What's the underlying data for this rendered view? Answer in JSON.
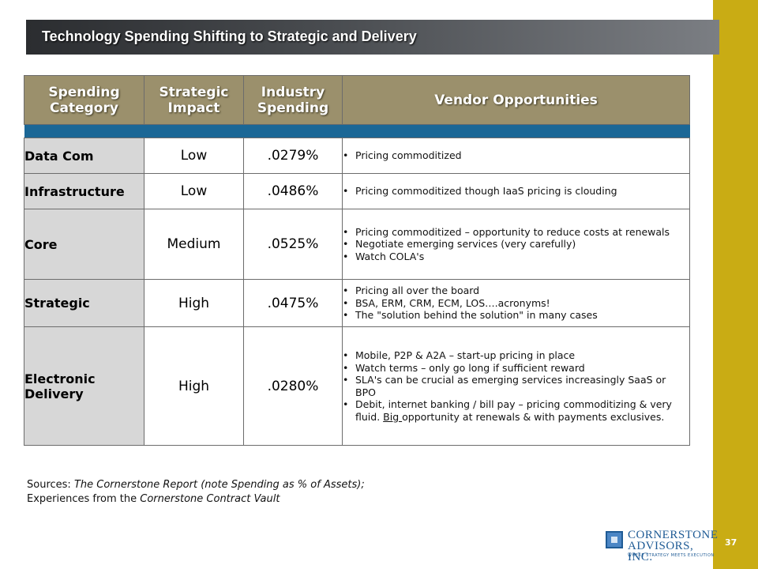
{
  "slide": {
    "title": "Technology Spending Shifting to Strategic and Delivery",
    "page_number": "37"
  },
  "table": {
    "headers": {
      "category_line1": "Spending",
      "category_line2": "Category",
      "impact_line1": "Strategic",
      "impact_line2": "Impact",
      "spending_line1": "Industry",
      "spending_line2": "Spending",
      "vendor": "Vendor Opportunities"
    },
    "rows": [
      {
        "category": "Data Com",
        "impact": "Low",
        "spending": ".0279%",
        "bullets": [
          "Pricing commoditized"
        ]
      },
      {
        "category": "Infrastructure",
        "impact": "Low",
        "spending": ".0486%",
        "bullets": [
          "Pricing commoditized though IaaS pricing is clouding"
        ]
      },
      {
        "category": "Core",
        "impact": "Medium",
        "spending": ".0525%",
        "bullets": [
          "Pricing commoditized – opportunity to reduce costs at renewals",
          "Negotiate emerging services (very carefully)",
          "Watch COLA's"
        ]
      },
      {
        "category": "Strategic",
        "impact": "High",
        "spending": ".0475%",
        "bullets": [
          "Pricing all over the board",
          "BSA, ERM, CRM, ECM, LOS….acronyms!",
          "The \"solution behind the solution\" in many cases"
        ]
      },
      {
        "category": "Electronic Delivery",
        "impact": "High",
        "spending": ".0280%",
        "bullets": [
          "Mobile, P2P & A2A – start-up pricing in place",
          "Watch terms – only go long if sufficient reward",
          "SLA's can be crucial as emerging services increasingly SaaS or BPO"
        ],
        "last_bullet": {
          "before": "Debit, internet banking / bill pay – pricing commoditizing & very fluid.  ",
          "underlined": "Big ",
          "after": "opportunity at renewals & with payments exclusives."
        }
      }
    ]
  },
  "sources": {
    "line1_label": "Sources: ",
    "line1_italic": "The Cornerstone Report (note Spending as % of Assets);",
    "line2_label": "Experiences from the ",
    "line2_italic": "Cornerstone Contract Vault"
  },
  "logo": {
    "line1": "CORNERSTONE",
    "line2": "ADVISORS, INC.",
    "tagline": "WHERE STRATEGY MEETS EXECUTION",
    "icon": "cornerstone-square-logo-icon"
  },
  "colors": {
    "header_bg": "#9b906c",
    "separator": "#1b6796",
    "category_bg": "#d7d7d7",
    "right_bar": "#c9ac14",
    "title_bar": "#3a3c40"
  }
}
